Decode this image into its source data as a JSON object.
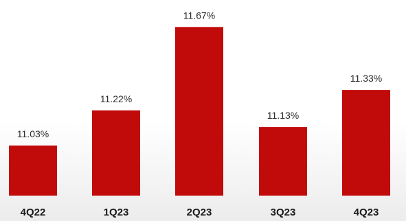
{
  "chart_data": {
    "type": "bar",
    "categories": [
      "4Q22",
      "1Q23",
      "2Q23",
      "3Q23",
      "4Q23"
    ],
    "values": [
      11.03,
      11.22,
      11.67,
      11.13,
      11.33
    ],
    "data_labels": [
      "11.03%",
      "11.22%",
      "11.67%",
      "11.13%",
      "11.33%"
    ],
    "title": "",
    "xlabel": "",
    "ylabel": "",
    "grid": false,
    "legend": "none",
    "colors": {
      "bar": "#c10a0a",
      "label_text": "#2b2b2b",
      "tick_text": "#1a1a1a"
    }
  }
}
